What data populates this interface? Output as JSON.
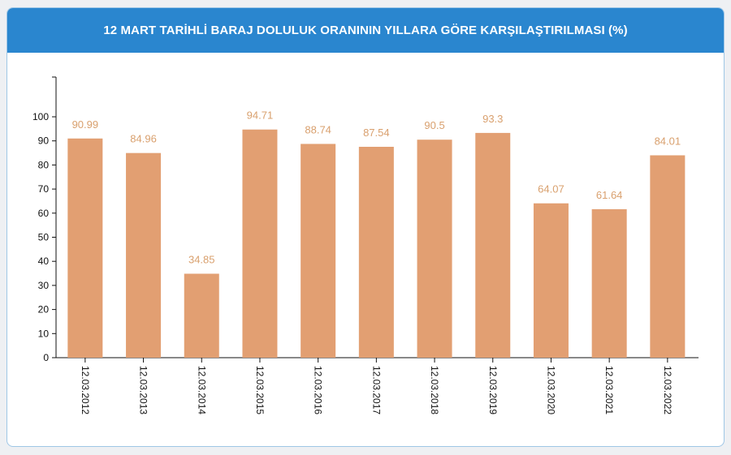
{
  "chart_data": {
    "type": "bar",
    "title": "12 MART TARİHLİ BARAJ DOLULUK ORANININ YILLARA GÖRE KARŞILAŞTIRILMASI (%)",
    "categories": [
      "12.03.2012",
      "12.03.2013",
      "12.03.2014",
      "12.03.2015",
      "12.03.2016",
      "12.03.2017",
      "12.03.2018",
      "12.03.2019",
      "12.03.2020",
      "12.03.2021",
      "12.03.2022"
    ],
    "values": [
      90.99,
      84.96,
      34.85,
      94.71,
      88.74,
      87.54,
      90.5,
      93.3,
      64.07,
      61.64,
      84.01
    ],
    "value_labels": [
      "90.99",
      "84.96",
      "34.85",
      "94.71",
      "88.74",
      "87.54",
      "90.5",
      "93.3",
      "64.07",
      "61.64",
      "84.01"
    ],
    "yticks": [
      0,
      10,
      20,
      30,
      40,
      50,
      60,
      70,
      80,
      90,
      100
    ],
    "ylim": [
      0,
      116
    ],
    "xlabel": "",
    "ylabel": "",
    "grid": false,
    "colors": {
      "bar": "#e29f72",
      "label": "#d9a06e",
      "header": "#2a86cf"
    }
  }
}
